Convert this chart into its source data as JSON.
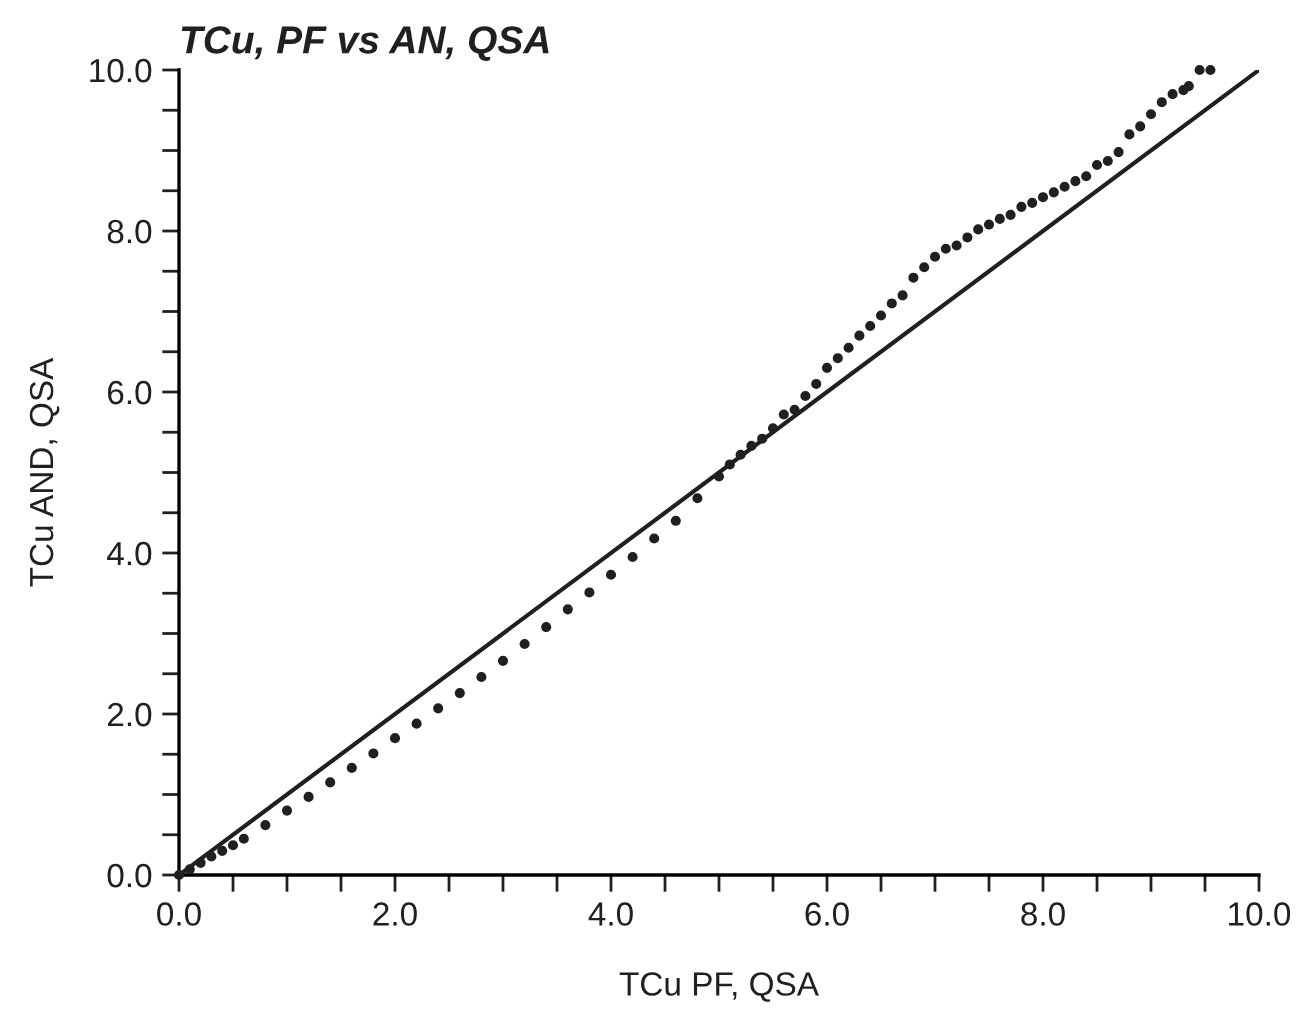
{
  "chart_data": {
    "type": "scatter",
    "title": "TCu, PF vs AN, QSA",
    "xlabel": "TCu PF, QSA",
    "ylabel": "TCu AND, QSA",
    "xlim": [
      0,
      10
    ],
    "ylim": [
      0,
      10
    ],
    "xticks": [
      {
        "value": 0,
        "label": "0.0"
      },
      {
        "value": 0.5,
        "label": null
      },
      {
        "value": 1,
        "label": null
      },
      {
        "value": 1.5,
        "label": null
      },
      {
        "value": 2,
        "label": "2.0"
      },
      {
        "value": 2.5,
        "label": null
      },
      {
        "value": 3,
        "label": null
      },
      {
        "value": 3.5,
        "label": null
      },
      {
        "value": 4,
        "label": "4.0"
      },
      {
        "value": 4.5,
        "label": null
      },
      {
        "value": 5,
        "label": null
      },
      {
        "value": 5.5,
        "label": null
      },
      {
        "value": 6,
        "label": "6.0"
      },
      {
        "value": 6.5,
        "label": null
      },
      {
        "value": 7,
        "label": null
      },
      {
        "value": 7.5,
        "label": null
      },
      {
        "value": 8,
        "label": "8.0"
      },
      {
        "value": 8.5,
        "label": null
      },
      {
        "value": 9,
        "label": null
      },
      {
        "value": 9.5,
        "label": null
      },
      {
        "value": 10,
        "label": "10.0"
      }
    ],
    "yticks": [
      {
        "value": 0,
        "label": "0.0"
      },
      {
        "value": 0.5,
        "label": null
      },
      {
        "value": 1,
        "label": null
      },
      {
        "value": 1.5,
        "label": null
      },
      {
        "value": 2,
        "label": "2.0"
      },
      {
        "value": 2.5,
        "label": null
      },
      {
        "value": 3,
        "label": null
      },
      {
        "value": 3.5,
        "label": null
      },
      {
        "value": 4,
        "label": "4.0"
      },
      {
        "value": 4.5,
        "label": null
      },
      {
        "value": 5,
        "label": null
      },
      {
        "value": 5.5,
        "label": null
      },
      {
        "value": 6,
        "label": "6.0"
      },
      {
        "value": 6.5,
        "label": null
      },
      {
        "value": 7,
        "label": null
      },
      {
        "value": 7.5,
        "label": null
      },
      {
        "value": 8,
        "label": "8.0"
      },
      {
        "value": 8.5,
        "label": null
      },
      {
        "value": 9,
        "label": null
      },
      {
        "value": 9.5,
        "label": null
      },
      {
        "value": 10,
        "label": "10.0"
      }
    ],
    "grid": false,
    "legend": false,
    "series": [
      {
        "marker": "circle",
        "color": "#231f20",
        "x": [
          0,
          0.1,
          0.2,
          0.3,
          0.4,
          0.5,
          0.6,
          0.8,
          1.0,
          1.2,
          1.4,
          1.6,
          1.8,
          2.0,
          2.2,
          2.4,
          2.6,
          2.8,
          3.0,
          3.2,
          3.4,
          3.6,
          3.8,
          4.0,
          4.2,
          4.4,
          4.6,
          4.8,
          5.0,
          5.1,
          5.2,
          5.3,
          5.4,
          5.5,
          5.6,
          5.7,
          5.8,
          5.9,
          6.0,
          6.1,
          6.2,
          6.3,
          6.4,
          6.5,
          6.6,
          6.7,
          6.8,
          6.9,
          7.0,
          7.1,
          7.2,
          7.3,
          7.4,
          7.5,
          7.6,
          7.7,
          7.8,
          7.9,
          8.0,
          8.1,
          8.2,
          8.3,
          8.4,
          8.5,
          8.6,
          8.7,
          8.8,
          8.9,
          9.0,
          9.1,
          9.2,
          9.3,
          9.35,
          9.45,
          9.55
        ],
        "values": [
          0,
          0.07,
          0.15,
          0.23,
          0.3,
          0.37,
          0.45,
          0.62,
          0.8,
          0.97,
          1.15,
          1.33,
          1.51,
          1.7,
          1.88,
          2.07,
          2.26,
          2.46,
          2.66,
          2.87,
          3.08,
          3.3,
          3.51,
          3.73,
          3.95,
          4.18,
          4.4,
          4.68,
          4.95,
          5.1,
          5.22,
          5.33,
          5.42,
          5.55,
          5.72,
          5.78,
          5.95,
          6.1,
          6.3,
          6.42,
          6.55,
          6.7,
          6.82,
          6.95,
          7.1,
          7.2,
          7.42,
          7.55,
          7.68,
          7.78,
          7.82,
          7.92,
          8.02,
          8.08,
          8.15,
          8.2,
          8.3,
          8.35,
          8.42,
          8.48,
          8.55,
          8.62,
          8.68,
          8.82,
          8.87,
          8.98,
          9.2,
          9.3,
          9.45,
          9.6,
          9.7,
          9.75,
          9.8,
          10.0,
          10.0
        ]
      },
      {
        "type": "line",
        "color": "#231f20",
        "x": [
          0,
          10
        ],
        "values": [
          0,
          10
        ]
      }
    ]
  }
}
